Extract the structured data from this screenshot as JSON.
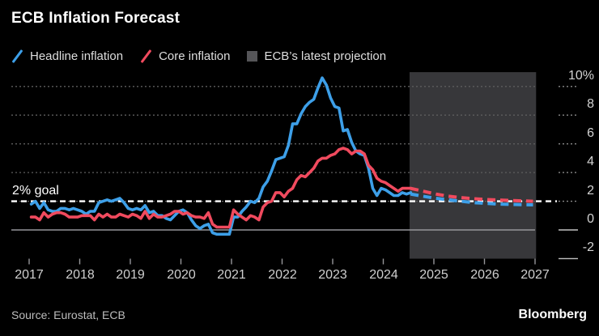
{
  "title": "ECB Inflation Forecast",
  "legend": [
    {
      "label": "Headline inflation",
      "marker": "diagonal-line",
      "color": "#3D9FE8"
    },
    {
      "label": "Core inflation",
      "marker": "diagonal-line",
      "color": "#F04A5E"
    },
    {
      "label": "ECB’s latest projection",
      "marker": "square",
      "color": "#555558"
    }
  ],
  "source": "Source: Eurostat, ECB",
  "logo": "Bloomberg",
  "chart_data": {
    "type": "line",
    "title": "ECB Inflation Forecast",
    "xlabel": "",
    "ylabel": "",
    "y_unit": "%",
    "ylim": [
      -2,
      11
    ],
    "xlim": [
      2016.7,
      2027.35
    ],
    "grid": "dotted horizontal",
    "legend_position": "top",
    "goal_line": {
      "label": "2% goal",
      "value": 2,
      "style": "dashed",
      "color": "#FFFFFF"
    },
    "projection_region": {
      "start": 2024.52,
      "end": 2027.02,
      "label": "ECB’s latest projection"
    },
    "y_ticks": [
      {
        "label": "10%",
        "value": 10,
        "line": "dotted"
      },
      {
        "label": "8",
        "value": 8,
        "line": "dotted"
      },
      {
        "label": "6",
        "value": 6,
        "line": "dotted"
      },
      {
        "label": "4",
        "value": 4,
        "line": "dotted"
      },
      {
        "label": "2",
        "value": 2,
        "line": "dotted"
      },
      {
        "label": "0",
        "value": 0,
        "line": "solid"
      },
      {
        "label": "-2",
        "value": -2,
        "line": "none"
      }
    ],
    "x_ticks": [
      2017,
      2018,
      2019,
      2020,
      2021,
      2022,
      2023,
      2024,
      2025,
      2026,
      2027
    ],
    "colors": {
      "headline": "#3D9FE8",
      "core": "#F04A5E",
      "projection_fill": "#37373A",
      "grid_dotted": "#5E5E5E",
      "grid_solid": "#96969A",
      "stub_dotted": "#8A8A8A",
      "stub_solid": "#C2C2C2",
      "tick": "#96969A",
      "goal": "#FFFFFF"
    },
    "series": [
      {
        "name": "Headline inflation",
        "color": "#3D9FE8",
        "style": "solid",
        "start": 2017.042,
        "step_months": 1,
        "values": [
          1.8,
          2.0,
          1.5,
          1.9,
          1.4,
          1.3,
          1.3,
          1.5,
          1.5,
          1.4,
          1.5,
          1.4,
          1.3,
          1.1,
          1.3,
          1.3,
          1.9,
          2.0,
          2.1,
          2.0,
          2.1,
          2.2,
          1.9,
          1.5,
          1.4,
          1.5,
          1.4,
          1.7,
          1.2,
          1.3,
          1.0,
          1.0,
          0.8,
          0.7,
          1.0,
          1.3,
          1.4,
          1.2,
          0.7,
          0.3,
          0.1,
          0.3,
          0.4,
          -0.2,
          -0.3,
          -0.3,
          -0.3,
          -0.3,
          0.9,
          0.9,
          1.3,
          1.6,
          2.0,
          1.9,
          2.2,
          3.0,
          3.4,
          4.1,
          4.9,
          5.0,
          5.1,
          5.9,
          7.4,
          7.4,
          8.1,
          8.6,
          8.9,
          9.1,
          9.9,
          10.6,
          10.1,
          9.2,
          8.6,
          8.5,
          6.9,
          7.0,
          6.1,
          5.5,
          5.3,
          5.2,
          4.3,
          2.9,
          2.4,
          2.9,
          2.8,
          2.6,
          2.4,
          2.4,
          2.6,
          2.5,
          2.6
        ]
      },
      {
        "name": "Core inflation",
        "color": "#F04A5E",
        "style": "solid",
        "start": 2017.042,
        "step_months": 1,
        "values": [
          0.9,
          0.9,
          0.7,
          1.2,
          0.9,
          1.1,
          1.2,
          1.2,
          1.1,
          0.9,
          0.9,
          0.9,
          1.0,
          1.0,
          1.0,
          0.7,
          1.1,
          0.9,
          1.1,
          0.9,
          0.9,
          1.1,
          1.0,
          0.9,
          1.1,
          1.0,
          0.8,
          1.3,
          0.8,
          1.1,
          0.9,
          0.9,
          1.0,
          1.1,
          1.3,
          1.3,
          1.1,
          1.2,
          1.0,
          0.9,
          0.9,
          0.8,
          1.2,
          0.4,
          0.2,
          0.2,
          0.2,
          0.2,
          1.4,
          1.1,
          0.9,
          0.7,
          1.0,
          0.9,
          0.7,
          1.6,
          1.9,
          2.0,
          2.6,
          2.6,
          2.3,
          2.7,
          2.9,
          3.5,
          3.8,
          3.7,
          4.0,
          4.3,
          4.8,
          5.0,
          5.0,
          5.2,
          5.3,
          5.6,
          5.7,
          5.6,
          5.3,
          5.5,
          5.5,
          5.3,
          4.5,
          4.2,
          3.6,
          3.4,
          3.3,
          3.1,
          2.9,
          2.7,
          2.9,
          2.9,
          2.9
        ]
      },
      {
        "name": "Headline inflation projection",
        "color": "#3D9FE8",
        "style": "dashed",
        "points": [
          [
            2024.54,
            2.5
          ],
          [
            2024.79,
            2.35
          ],
          [
            2025.04,
            2.2
          ],
          [
            2025.29,
            2.1
          ],
          [
            2025.54,
            2.0
          ],
          [
            2025.79,
            1.9
          ],
          [
            2026.04,
            1.85
          ],
          [
            2026.29,
            1.8
          ],
          [
            2026.54,
            1.78
          ],
          [
            2026.79,
            1.76
          ],
          [
            2026.96,
            1.75
          ]
        ]
      },
      {
        "name": "Core inflation projection",
        "color": "#F04A5E",
        "style": "dashed",
        "points": [
          [
            2024.54,
            2.9
          ],
          [
            2024.79,
            2.7
          ],
          [
            2025.04,
            2.5
          ],
          [
            2025.29,
            2.35
          ],
          [
            2025.54,
            2.25
          ],
          [
            2025.79,
            2.18
          ],
          [
            2026.04,
            2.12
          ],
          [
            2026.29,
            2.08
          ],
          [
            2026.54,
            2.05
          ],
          [
            2026.79,
            2.02
          ],
          [
            2026.96,
            2.0
          ]
        ]
      }
    ]
  }
}
